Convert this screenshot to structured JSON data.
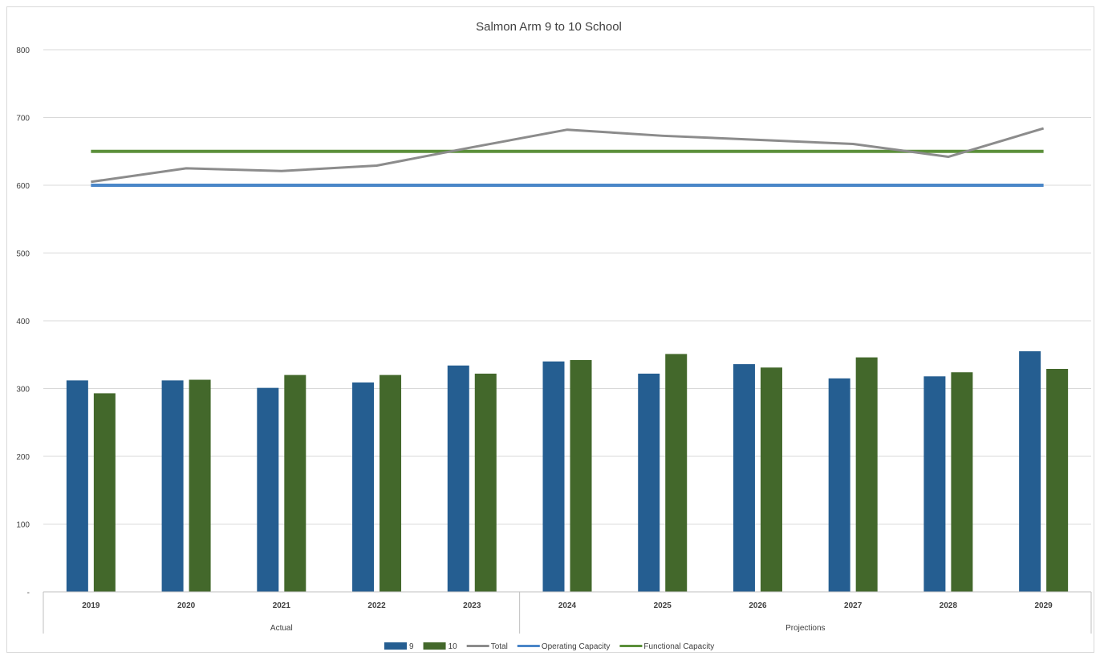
{
  "chart_data": {
    "type": "bar",
    "title": "Salmon Arm 9 to 10 School",
    "xlabel": "",
    "ylabel": "",
    "ylim": [
      0,
      800
    ],
    "yticks": [
      0,
      100,
      200,
      300,
      400,
      500,
      600,
      700,
      800
    ],
    "ytick_labels": [
      "-",
      "100",
      "200",
      "300",
      "400",
      "500",
      "600",
      "700",
      "800"
    ],
    "grid": true,
    "legend_position": "bottom",
    "categories": [
      "2019",
      "2020",
      "2021",
      "2022",
      "2023",
      "2024",
      "2025",
      "2026",
      "2027",
      "2028",
      "2029"
    ],
    "category_groups": [
      {
        "label": "Actual",
        "count": 5
      },
      {
        "label": "Projections",
        "count": 6
      }
    ],
    "series": [
      {
        "name": "9",
        "type": "bar",
        "color": "#255e91",
        "values": [
          312,
          312,
          301,
          309,
          334,
          340,
          322,
          336,
          315,
          318,
          355
        ]
      },
      {
        "name": "10",
        "type": "bar",
        "color": "#43682b",
        "values": [
          293,
          313,
          320,
          320,
          322,
          342,
          351,
          331,
          346,
          324,
          329
        ]
      },
      {
        "name": "Total",
        "type": "line",
        "color": "#8c8c8c",
        "values": [
          605,
          625,
          621,
          629,
          656,
          682,
          673,
          667,
          661,
          642,
          684
        ]
      },
      {
        "name": "Operating Capacity",
        "type": "line",
        "color": "#4a86c8",
        "values": [
          600,
          600,
          600,
          600,
          600,
          600,
          600,
          600,
          600,
          600,
          600
        ]
      },
      {
        "name": "Functional Capacity",
        "type": "line",
        "color": "#5b8f3a",
        "values": [
          650,
          650,
          650,
          650,
          650,
          650,
          650,
          650,
          650,
          650,
          650
        ]
      }
    ]
  }
}
